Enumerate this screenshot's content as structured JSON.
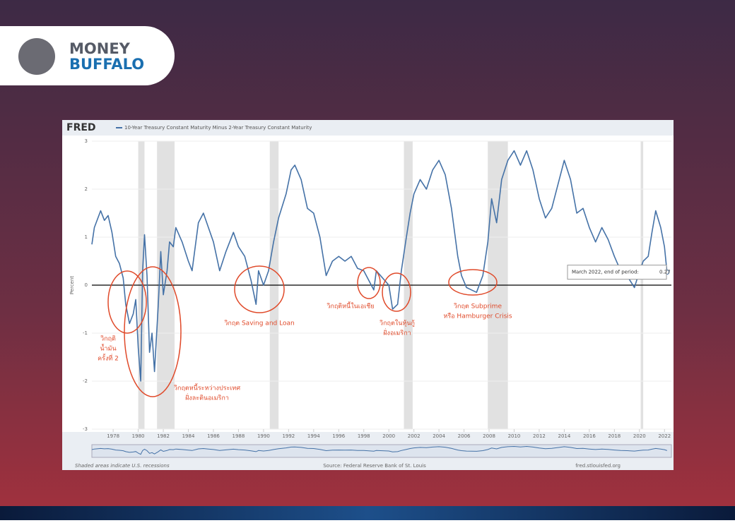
{
  "brand": {
    "line1": "MONEY",
    "line2": "BUFFALO"
  },
  "chart_data": {
    "type": "line",
    "source_logo": "FRED",
    "y_label": "Percent",
    "xlim": [
      1976.3,
      2022.55
    ],
    "ylim": [
      -3,
      3
    ],
    "yticks": [
      -3,
      -2,
      -1,
      0,
      1,
      2,
      3
    ],
    "xticks": [
      1978,
      1980,
      1982,
      1984,
      1986,
      1988,
      1990,
      1992,
      1994,
      1996,
      1998,
      2000,
      2002,
      2004,
      2006,
      2008,
      2010,
      2012,
      2014,
      2016,
      2018,
      2020,
      2022
    ],
    "reference_line": 0,
    "grid": true,
    "recessions": [
      [
        1980.0,
        1980.5
      ],
      [
        1981.5,
        1982.9
      ],
      [
        1990.5,
        1991.2
      ],
      [
        2001.2,
        2001.9
      ],
      [
        2007.9,
        2009.5
      ],
      [
        2020.1,
        2020.3
      ]
    ],
    "series": [
      {
        "name": "10-Year Treasury Constant Maturity Minus 2-Year Treasury Constant Maturity",
        "color": "#4572a7",
        "x": [
          1976.3,
          1976.5,
          1977.0,
          1977.3,
          1977.6,
          1977.9,
          1978.2,
          1978.5,
          1978.8,
          1979.0,
          1979.3,
          1979.6,
          1979.8,
          1980.0,
          1980.2,
          1980.35,
          1980.5,
          1980.7,
          1980.9,
          1981.1,
          1981.3,
          1981.6,
          1981.8,
          1982.0,
          1982.3,
          1982.5,
          1982.8,
          1983.0,
          1983.5,
          1984.0,
          1984.3,
          1984.8,
          1985.2,
          1985.6,
          1986.0,
          1986.5,
          1987.0,
          1987.6,
          1988.0,
          1988.5,
          1989.0,
          1989.4,
          1989.6,
          1990.0,
          1990.4,
          1990.8,
          1991.2,
          1991.8,
          1992.2,
          1992.5,
          1993.0,
          1993.5,
          1994.0,
          1994.5,
          1995.0,
          1995.5,
          1996.0,
          1996.5,
          1997.0,
          1997.5,
          1998.0,
          1998.5,
          1998.8,
          1999.0,
          1999.5,
          2000.0,
          2000.3,
          2000.7,
          2001.0,
          2001.4,
          2001.7,
          2002.0,
          2002.5,
          2003.0,
          2003.5,
          2004.0,
          2004.5,
          2005.0,
          2005.5,
          2005.8,
          2006.2,
          2006.6,
          2007.0,
          2007.5,
          2007.9,
          2008.2,
          2008.6,
          2009.0,
          2009.5,
          2010.0,
          2010.5,
          2011.0,
          2011.5,
          2012.0,
          2012.5,
          2013.0,
          2013.6,
          2014.0,
          2014.5,
          2015.0,
          2015.5,
          2016.0,
          2016.5,
          2017.0,
          2017.5,
          2018.0,
          2018.5,
          2019.0,
          2019.6,
          2019.9,
          2020.3,
          2020.7,
          2021.0,
          2021.3,
          2021.7,
          2022.0,
          2022.2
        ],
        "values": [
          0.85,
          1.2,
          1.55,
          1.35,
          1.45,
          1.1,
          0.6,
          0.45,
          0.15,
          -0.4,
          -0.8,
          -0.6,
          -0.3,
          -1.3,
          -2.0,
          0.3,
          1.05,
          0.2,
          -1.4,
          -1.0,
          -1.8,
          -0.4,
          0.7,
          -0.2,
          0.3,
          0.9,
          0.8,
          1.2,
          0.9,
          0.5,
          0.3,
          1.3,
          1.5,
          1.2,
          0.9,
          0.3,
          0.7,
          1.1,
          0.8,
          0.6,
          0.1,
          -0.4,
          0.3,
          0.0,
          0.3,
          0.9,
          1.4,
          1.9,
          2.4,
          2.5,
          2.2,
          1.6,
          1.5,
          1.0,
          0.2,
          0.5,
          0.6,
          0.5,
          0.6,
          0.35,
          0.3,
          0.05,
          -0.1,
          0.3,
          0.15,
          0.0,
          -0.5,
          -0.4,
          0.3,
          1.0,
          1.5,
          1.9,
          2.2,
          2.0,
          2.4,
          2.6,
          2.3,
          1.6,
          0.6,
          0.2,
          -0.05,
          -0.1,
          -0.15,
          0.2,
          0.9,
          1.8,
          1.3,
          2.2,
          2.6,
          2.8,
          2.5,
          2.8,
          2.4,
          1.8,
          1.4,
          1.6,
          2.2,
          2.6,
          2.2,
          1.5,
          1.6,
          1.2,
          0.9,
          1.2,
          0.95,
          0.6,
          0.3,
          0.2,
          -0.05,
          0.2,
          0.5,
          0.6,
          1.1,
          1.55,
          1.2,
          0.8,
          0.27
        ]
      }
    ],
    "tooltip_label": "March 2022, end of period:",
    "annotations": [
      {
        "lines": [
          "วิกฤติ",
          "น้ำมัน",
          "ครั้งที่ 2"
        ]
      },
      {
        "lines": [
          "วิกฤตหนี้ระหว่างประเทศ",
          "ฝั่งละตินอเมริกา"
        ]
      },
      {
        "lines": [
          "วิกฤต Saving and Loan"
        ]
      },
      {
        "lines": [
          "วิกฤติหนี้ในเอเชีย"
        ]
      },
      {
        "lines": [
          "วิกฤตในหุ้นกู้",
          "ฝั่งอเมริกา"
        ]
      },
      {
        "lines": [
          "วิกฤต Subprime",
          "หรือ Hamburger Crisis"
        ]
      }
    ],
    "footer": {
      "note": "Shaded areas indicate U.S. recessions",
      "source": "Source: Federal Reserve Bank of St. Louis",
      "site": "fred.stlouisfed.org"
    }
  }
}
